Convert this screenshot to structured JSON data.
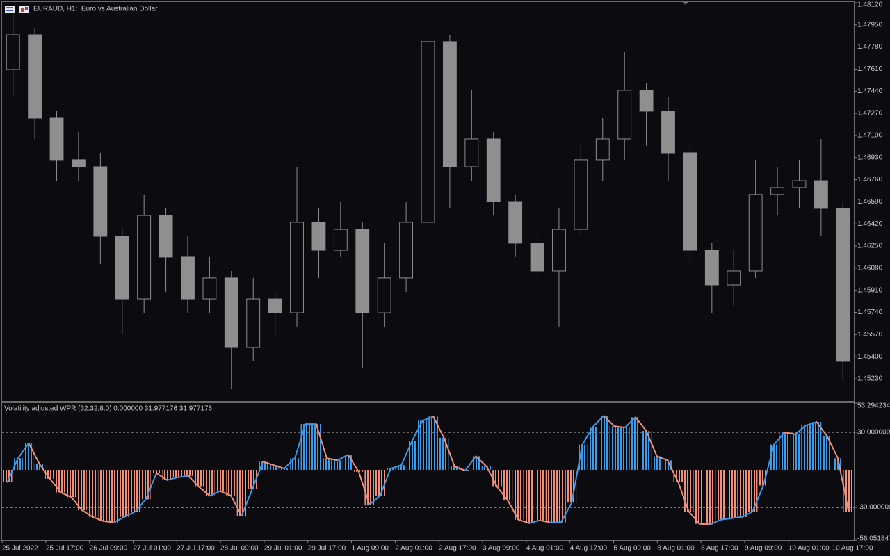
{
  "chart_data": [
    {
      "type": "candlestick",
      "title": "EURAUD, H1:  Euro vs Australian Dollar",
      "color": "#8f8f8f",
      "categories": [
        "25 Jul 2022",
        null,
        "25 Jul 17:00",
        null,
        "26 Jul 09:00",
        null,
        "27 Jul 01:00",
        null,
        "27 Jul 17:00",
        null,
        "28 Jul 09:00",
        null,
        "29 Jul 01:00",
        null,
        "29 Jul 17:00",
        null,
        "1 Aug 09:00",
        null,
        "2 Aug 01:00",
        null,
        "2 Aug 17:00",
        null,
        "3 Aug 09:00",
        null,
        "4 Aug 01:00",
        null,
        "4 Aug 17:00",
        null,
        "5 Aug 09:00",
        null,
        "8 Aug 01:00",
        null,
        "8 Aug 17:00",
        null,
        "9 Aug 09:00",
        null,
        "10 Aug 01:00",
        null,
        "10 Aug 17:00"
      ],
      "open": [
        1.47607,
        1.47874,
        1.47233,
        1.46913,
        1.46859,
        1.46325,
        1.45844,
        1.46485,
        1.46165,
        1.45844,
        1.46005,
        1.4547,
        1.45844,
        1.45737,
        1.46432,
        1.46218,
        1.46378,
        1.45737,
        1.46005,
        1.46432,
        1.47821,
        1.46859,
        1.47073,
        1.46592,
        1.46272,
        1.46058,
        1.46378,
        1.46913,
        1.47073,
        1.47447,
        1.47287,
        1.46966,
        1.46218,
        1.45951,
        1.46058,
        1.46646,
        1.46699,
        1.46752,
        1.46539
      ],
      "high": [
        1.48035,
        1.47928,
        1.47287,
        1.47126,
        1.46966,
        1.46378,
        1.46646,
        1.46539,
        1.46325,
        1.46165,
        1.46058,
        1.46005,
        1.45898,
        1.46859,
        1.46539,
        1.46592,
        1.46432,
        1.46272,
        1.46592,
        1.48061,
        1.47874,
        1.47447,
        1.47126,
        1.46646,
        1.46378,
        1.46539,
        1.4702,
        1.47233,
        1.47741,
        1.475,
        1.47393,
        1.4702,
        1.46272,
        1.46218,
        1.46913,
        1.46859,
        1.46913,
        1.47073,
        1.46592
      ],
      "low": [
        1.47393,
        1.47073,
        1.46752,
        1.46752,
        1.46111,
        1.45577,
        1.45737,
        1.45898,
        1.45737,
        1.45737,
        1.4515,
        1.45364,
        1.45577,
        1.45631,
        1.46005,
        1.46165,
        1.4531,
        1.45631,
        1.45898,
        1.46378,
        1.46539,
        1.46752,
        1.46485,
        1.46165,
        1.45951,
        1.45631,
        1.46325,
        1.46752,
        1.46913,
        1.4702,
        1.46752,
        1.46111,
        1.45737,
        1.45791,
        1.46005,
        1.46485,
        1.46539,
        1.46325,
        1.4523
      ],
      "close": [
        1.47874,
        1.47233,
        1.46913,
        1.46859,
        1.46325,
        1.45844,
        1.46485,
        1.46165,
        1.45844,
        1.46005,
        1.4547,
        1.45844,
        1.45737,
        1.46432,
        1.46218,
        1.46378,
        1.45737,
        1.46005,
        1.46432,
        1.47821,
        1.46859,
        1.47073,
        1.46592,
        1.46272,
        1.46058,
        1.46378,
        1.46913,
        1.47073,
        1.47447,
        1.47287,
        1.46966,
        1.46218,
        1.45951,
        1.46058,
        1.46646,
        1.46699,
        1.46752,
        1.46539,
        1.45364
      ],
      "ylim": [
        1.45059,
        1.48125
      ],
      "yticks": [
        {
          "value": 1.4812,
          "label": "1.48120"
        },
        {
          "value": 1.4795,
          "label": "1.47950"
        },
        {
          "value": 1.4778,
          "label": "1.47780"
        },
        {
          "value": 1.4761,
          "label": "1.47610"
        },
        {
          "value": 1.4744,
          "label": "1.47440"
        },
        {
          "value": 1.4727,
          "label": "1.47270"
        },
        {
          "value": 1.471,
          "label": "1.47100"
        },
        {
          "value": 1.4693,
          "label": "1.46930"
        },
        {
          "value": 1.4676,
          "label": "1.46760"
        },
        {
          "value": 1.4659,
          "label": "1.46590"
        },
        {
          "value": 1.4642,
          "label": "1.46420"
        },
        {
          "value": 1.4625,
          "label": "1.46250"
        },
        {
          "value": 1.4608,
          "label": "1.46080"
        },
        {
          "value": 1.4591,
          "label": "1.45910"
        },
        {
          "value": 1.4574,
          "label": "1.45740"
        },
        {
          "value": 1.4557,
          "label": "1.45570"
        },
        {
          "value": 1.454,
          "label": "1.45400"
        },
        {
          "value": 1.4523,
          "label": "1.45230"
        }
      ]
    },
    {
      "type": "oscillator",
      "title": "Volatility adjusted WPR (32,32,8.0) 0.000000 31.977176 31.977176",
      "up_color": "#3d9be9",
      "down_color": "#f0907a",
      "grid": "dashed",
      "values": [
        -9.8,
        9.3,
        21.3,
        4.9,
        -7.1,
        -18.0,
        -21.8,
        -32.2,
        -37.6,
        -40.9,
        -42.0,
        -37.6,
        -33.3,
        -23.5,
        -2.7,
        -8.2,
        -6.0,
        -4.9,
        -13.6,
        -20.7,
        -16.9,
        -20.7,
        -36.6,
        -15.3,
        6.5,
        3.8,
        1.1,
        9.3,
        36.6,
        36.6,
        9.3,
        7.6,
        12.0,
        -1.6,
        -27.8,
        -20.7,
        1.1,
        3.8,
        22.9,
        39.3,
        42.6,
        25.6,
        2.7,
        -0.5,
        10.9,
        2.7,
        -13.6,
        -24.5,
        -39.8,
        -42.6,
        -40.4,
        -42.0,
        -42.0,
        -26.2,
        20.2,
        34.4,
        43.1,
        34.9,
        33.8,
        42.0,
        31.1,
        10.9,
        7.6,
        -9.8,
        -33.3,
        -43.1,
        -43.6,
        -39.8,
        -38.7,
        -37.6,
        -33.3,
        -12.5,
        20.2,
        30.0,
        28.4,
        35.5,
        38.2,
        26.7,
        9.3,
        -33.3
      ],
      "ylim": [
        -56.051847,
        53.294234
      ],
      "yticks": [
        {
          "value": 53.294234,
          "label": "53.294234"
        },
        {
          "value": 30,
          "label": "30.000000"
        },
        {
          "value": -30,
          "label": "-30.000000"
        },
        {
          "value": -56.051847,
          "label": "-56.051847"
        }
      ]
    }
  ]
}
